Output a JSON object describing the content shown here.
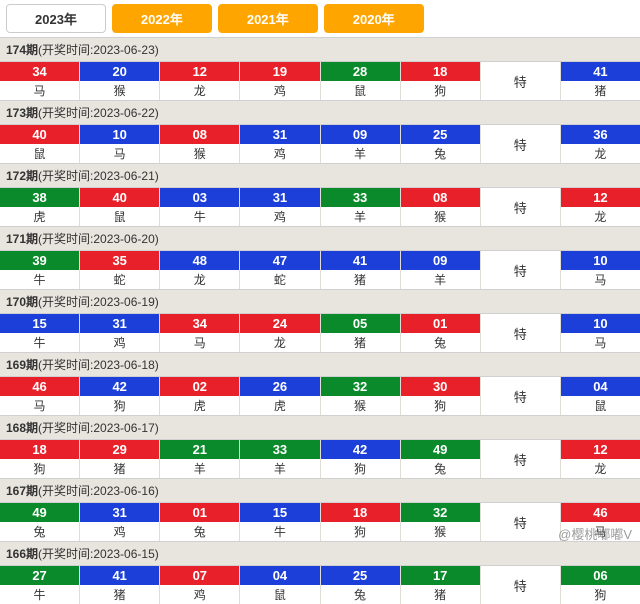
{
  "colors": {
    "red": "#e8202a",
    "blue": "#1b3fd8",
    "green": "#0a8a2a"
  },
  "tabs": [
    {
      "label": "2023年",
      "active": true
    },
    {
      "label": "2022年",
      "active": false
    },
    {
      "label": "2021年",
      "active": false
    },
    {
      "label": "2020年",
      "active": false
    }
  ],
  "te_label": "特",
  "watermark": "@樱桃嘟嘟V",
  "draws": [
    {
      "period": "174",
      "date": "2023-06-23",
      "balls": [
        {
          "n": "34",
          "z": "马",
          "c": "red"
        },
        {
          "n": "20",
          "z": "猴",
          "c": "blue"
        },
        {
          "n": "12",
          "z": "龙",
          "c": "red"
        },
        {
          "n": "19",
          "z": "鸡",
          "c": "red"
        },
        {
          "n": "28",
          "z": "鼠",
          "c": "green"
        },
        {
          "n": "18",
          "z": "狗",
          "c": "red"
        }
      ],
      "special": {
        "n": "41",
        "z": "猪",
        "c": "blue"
      }
    },
    {
      "period": "173",
      "date": "2023-06-22",
      "balls": [
        {
          "n": "40",
          "z": "鼠",
          "c": "red"
        },
        {
          "n": "10",
          "z": "马",
          "c": "blue"
        },
        {
          "n": "08",
          "z": "猴",
          "c": "red"
        },
        {
          "n": "31",
          "z": "鸡",
          "c": "blue"
        },
        {
          "n": "09",
          "z": "羊",
          "c": "blue"
        },
        {
          "n": "25",
          "z": "兔",
          "c": "blue"
        }
      ],
      "special": {
        "n": "36",
        "z": "龙",
        "c": "blue"
      }
    },
    {
      "period": "172",
      "date": "2023-06-21",
      "balls": [
        {
          "n": "38",
          "z": "虎",
          "c": "green"
        },
        {
          "n": "40",
          "z": "鼠",
          "c": "red"
        },
        {
          "n": "03",
          "z": "牛",
          "c": "blue"
        },
        {
          "n": "31",
          "z": "鸡",
          "c": "blue"
        },
        {
          "n": "33",
          "z": "羊",
          "c": "green"
        },
        {
          "n": "08",
          "z": "猴",
          "c": "red"
        }
      ],
      "special": {
        "n": "12",
        "z": "龙",
        "c": "red"
      }
    },
    {
      "period": "171",
      "date": "2023-06-20",
      "balls": [
        {
          "n": "39",
          "z": "牛",
          "c": "green"
        },
        {
          "n": "35",
          "z": "蛇",
          "c": "red"
        },
        {
          "n": "48",
          "z": "龙",
          "c": "blue"
        },
        {
          "n": "47",
          "z": "蛇",
          "c": "blue"
        },
        {
          "n": "41",
          "z": "猪",
          "c": "blue"
        },
        {
          "n": "09",
          "z": "羊",
          "c": "blue"
        }
      ],
      "special": {
        "n": "10",
        "z": "马",
        "c": "blue"
      }
    },
    {
      "period": "170",
      "date": "2023-06-19",
      "balls": [
        {
          "n": "15",
          "z": "牛",
          "c": "blue"
        },
        {
          "n": "31",
          "z": "鸡",
          "c": "blue"
        },
        {
          "n": "34",
          "z": "马",
          "c": "red"
        },
        {
          "n": "24",
          "z": "龙",
          "c": "red"
        },
        {
          "n": "05",
          "z": "猪",
          "c": "green"
        },
        {
          "n": "01",
          "z": "兔",
          "c": "red"
        }
      ],
      "special": {
        "n": "10",
        "z": "马",
        "c": "blue"
      }
    },
    {
      "period": "169",
      "date": "2023-06-18",
      "balls": [
        {
          "n": "46",
          "z": "马",
          "c": "red"
        },
        {
          "n": "42",
          "z": "狗",
          "c": "blue"
        },
        {
          "n": "02",
          "z": "虎",
          "c": "red"
        },
        {
          "n": "26",
          "z": "虎",
          "c": "blue"
        },
        {
          "n": "32",
          "z": "猴",
          "c": "green"
        },
        {
          "n": "30",
          "z": "狗",
          "c": "red"
        }
      ],
      "special": {
        "n": "04",
        "z": "鼠",
        "c": "blue"
      }
    },
    {
      "period": "168",
      "date": "2023-06-17",
      "balls": [
        {
          "n": "18",
          "z": "狗",
          "c": "red"
        },
        {
          "n": "29",
          "z": "猪",
          "c": "red"
        },
        {
          "n": "21",
          "z": "羊",
          "c": "green"
        },
        {
          "n": "33",
          "z": "羊",
          "c": "green"
        },
        {
          "n": "42",
          "z": "狗",
          "c": "blue"
        },
        {
          "n": "49",
          "z": "兔",
          "c": "green"
        }
      ],
      "special": {
        "n": "12",
        "z": "龙",
        "c": "red"
      }
    },
    {
      "period": "167",
      "date": "2023-06-16",
      "balls": [
        {
          "n": "49",
          "z": "兔",
          "c": "green"
        },
        {
          "n": "31",
          "z": "鸡",
          "c": "blue"
        },
        {
          "n": "01",
          "z": "兔",
          "c": "red"
        },
        {
          "n": "15",
          "z": "牛",
          "c": "blue"
        },
        {
          "n": "18",
          "z": "狗",
          "c": "red"
        },
        {
          "n": "32",
          "z": "猴",
          "c": "green"
        }
      ],
      "special": {
        "n": "46",
        "z": "马",
        "c": "red"
      }
    },
    {
      "period": "166",
      "date": "2023-06-15",
      "balls": [
        {
          "n": "27",
          "z": "牛",
          "c": "green"
        },
        {
          "n": "41",
          "z": "猪",
          "c": "blue"
        },
        {
          "n": "07",
          "z": "鸡",
          "c": "red"
        },
        {
          "n": "04",
          "z": "鼠",
          "c": "blue"
        },
        {
          "n": "25",
          "z": "兔",
          "c": "blue"
        },
        {
          "n": "17",
          "z": "猪",
          "c": "green"
        }
      ],
      "special": {
        "n": "06",
        "z": "狗",
        "c": "green"
      }
    }
  ]
}
